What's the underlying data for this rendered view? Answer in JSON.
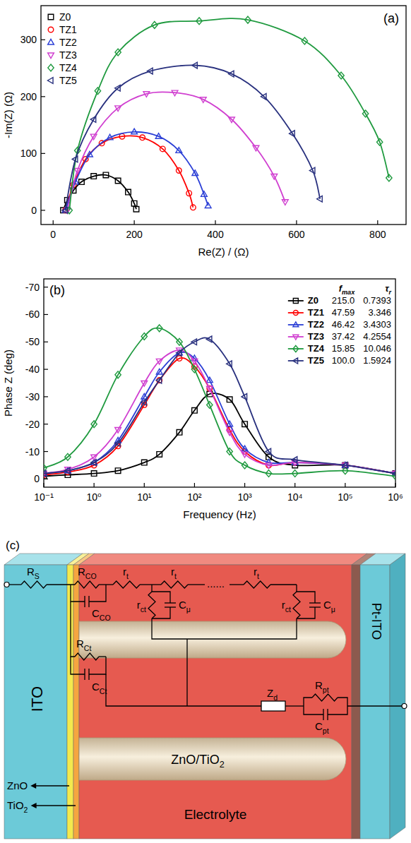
{
  "chart_data": [
    {
      "type": "line",
      "panel_label": "(a)",
      "x_label": "Re(Z) / (Ω)",
      "y_label": "-Im(Z) (Ω)",
      "xlim": [
        -30,
        870
      ],
      "ylim": [
        -25,
        360
      ],
      "xticks": [
        0,
        200,
        400,
        600,
        800
      ],
      "yticks": [
        0,
        100,
        200,
        300
      ],
      "grid": false,
      "legend": "upper left",
      "series": [
        {
          "name": "Z0",
          "color": "#000000",
          "marker": "square",
          "line_style": "solid",
          "x": [
            25,
            35,
            50,
            70,
            100,
            130,
            160,
            185,
            200,
            205
          ],
          "values": [
            0,
            18,
            35,
            50,
            60,
            62,
            52,
            32,
            12,
            2
          ]
        },
        {
          "name": "TZ1",
          "color": "#ff0000",
          "marker": "circle",
          "line_style": "solid",
          "x": [
            30,
            50,
            80,
            120,
            170,
            220,
            270,
            310,
            335,
            345
          ],
          "values": [
            0,
            45,
            90,
            118,
            130,
            128,
            108,
            70,
            30,
            5
          ]
        },
        {
          "name": "TZ2",
          "color": "#2b3fd6",
          "marker": "triangle-up",
          "line_style": "solid",
          "x": [
            30,
            55,
            90,
            140,
            200,
            260,
            310,
            350,
            372,
            382
          ],
          "values": [
            0,
            50,
            98,
            128,
            138,
            130,
            105,
            65,
            28,
            8
          ]
        },
        {
          "name": "TZ3",
          "color": "#d03fd0",
          "marker": "triangle-down",
          "line_style": "solid",
          "x": [
            35,
            60,
            100,
            160,
            230,
            300,
            370,
            440,
            500,
            545,
            572
          ],
          "values": [
            0,
            70,
            130,
            180,
            205,
            207,
            195,
            160,
            110,
            60,
            15
          ]
        },
        {
          "name": "TZ4",
          "color": "#1f9a3f",
          "marker": "diamond",
          "line_style": "solid",
          "x": [
            40,
            60,
            110,
            160,
            250,
            360,
            480,
            620,
            710,
            770,
            805,
            828
          ],
          "values": [
            0,
            105,
            210,
            278,
            326,
            333,
            335,
            298,
            237,
            170,
            120,
            57
          ]
        },
        {
          "name": "TZ5",
          "color": "#28307e",
          "marker": "triangle-left",
          "line_style": "solid",
          "x": [
            30,
            55,
            100,
            160,
            240,
            350,
            440,
            520,
            590,
            640,
            658
          ],
          "values": [
            0,
            90,
            160,
            215,
            245,
            255,
            240,
            200,
            135,
            70,
            20
          ]
        }
      ]
    },
    {
      "type": "line",
      "panel_label": "(b)",
      "x_label": "Frequency (Hz)",
      "y_label": "Phase Z (deg)",
      "log": "x",
      "xlim": [
        0.1,
        1000000
      ],
      "ylim": [
        3,
        -73
      ],
      "xticks": [
        {
          "value": 0.1,
          "label": "10⁻¹"
        },
        {
          "value": 1,
          "label": "10⁰"
        },
        {
          "value": 10,
          "label": "10¹"
        },
        {
          "value": 100,
          "label": "10²"
        },
        {
          "value": 1000,
          "label": "10³"
        },
        {
          "value": 10000,
          "label": "10⁴"
        },
        {
          "value": 100000,
          "label": "10⁵"
        },
        {
          "value": 1000000,
          "label": "10⁶"
        }
      ],
      "yticks": [
        -70,
        -60,
        -50,
        -40,
        -30,
        -20,
        -10,
        0
      ],
      "grid": false,
      "legend": "upper right",
      "legend_columns": [
        {
          "main": "f",
          "sub": "max"
        },
        {
          "main": "τ",
          "sub": "r"
        }
      ],
      "x": [
        0.1,
        0.3,
        1,
        3,
        10,
        20,
        50,
        100,
        200,
        500,
        1000,
        3000,
        10000,
        100000,
        1000000
      ],
      "series": [
        {
          "name": "Z0",
          "color": "#000000",
          "marker": "square",
          "line_style": "solid",
          "fmax": "215.0",
          "tau": "0.7393",
          "values": [
            -1,
            -1.5,
            -2,
            -3,
            -6,
            -9,
            -17,
            -25,
            -31,
            -29,
            -20,
            -8,
            -5,
            -5,
            -2
          ]
        },
        {
          "name": "TZ1",
          "color": "#ff0000",
          "marker": "circle",
          "line_style": "solid",
          "fmax": "47.59",
          "tau": "3.346",
          "values": [
            -1.5,
            -2.5,
            -5,
            -12,
            -27,
            -36,
            -44,
            -41,
            -33,
            -18,
            -10,
            -5,
            -6,
            -5,
            -2
          ]
        },
        {
          "name": "TZ2",
          "color": "#2b3fd6",
          "marker": "triangle-up",
          "line_style": "solid",
          "fmax": "46.42",
          "tau": "3.4303",
          "values": [
            -2,
            -3,
            -6,
            -14,
            -30,
            -39,
            -46,
            -44,
            -36,
            -20,
            -11,
            -6,
            -6,
            -5,
            -2
          ]
        },
        {
          "name": "TZ3",
          "color": "#d03fd0",
          "marker": "triangle-down",
          "line_style": "solid",
          "fmax": "37.42",
          "tau": "4.2554",
          "values": [
            -2,
            -3.5,
            -8,
            -18,
            -35,
            -43,
            -47,
            -43,
            -33,
            -17,
            -9,
            -5,
            -6,
            -5,
            -2
          ]
        },
        {
          "name": "TZ4",
          "color": "#1f9a3f",
          "marker": "diamond",
          "line_style": "solid",
          "fmax": "15.85",
          "tau": "10.046",
          "values": [
            -4,
            -8,
            -20,
            -38,
            -52,
            -55,
            -50,
            -40,
            -27,
            -10,
            -5,
            -2,
            -2,
            -3,
            -1
          ]
        },
        {
          "name": "TZ5",
          "color": "#28307e",
          "marker": "triangle-left",
          "line_style": "solid",
          "fmax": "100.0",
          "tau": "1.5924",
          "values": [
            -2,
            -3,
            -6,
            -13,
            -28,
            -36,
            -46,
            -50,
            -51,
            -42,
            -30,
            -10,
            -7,
            -5,
            -2
          ]
        }
      ]
    }
  ],
  "diagram": {
    "panel_label": "(c)",
    "electrode_left": "ITO",
    "electrode_right": "Pt-ITO",
    "electrolyte": "Electrolyte",
    "rod": {
      "main": "ZnO/TiO",
      "sub": "2"
    },
    "layer_zno": {
      "main": "ZnO"
    },
    "layer_tio2": {
      "main": "TiO",
      "sub": "2"
    },
    "components": {
      "R_S": {
        "main": "R",
        "sub": "S"
      },
      "R_CO": {
        "main": "R",
        "sub": "CO"
      },
      "C_CO": {
        "main": "C",
        "sub": "CO"
      },
      "r_t": [
        {
          "main": "r",
          "sub": "t"
        },
        {
          "main": "r",
          "sub": "t"
        },
        {
          "main": "r",
          "sub": "t"
        }
      ],
      "ellipsis": "......",
      "r_ct": [
        {
          "main": "r",
          "sub": "ct"
        },
        {
          "main": "r",
          "sub": "ct"
        }
      ],
      "C_mu": [
        {
          "main": "C",
          "sub": "μ"
        },
        {
          "main": "C",
          "sub": "μ"
        }
      ],
      "R_Ct": {
        "main": "R",
        "sub": "Ct"
      },
      "C_Ct": {
        "main": "C",
        "sub": "Ct"
      },
      "Z_d": {
        "main": "Z",
        "sub": "d"
      },
      "R_pt": {
        "main": "R",
        "sub": "pt"
      },
      "C_pt": {
        "main": "C",
        "sub": "pt"
      }
    }
  }
}
